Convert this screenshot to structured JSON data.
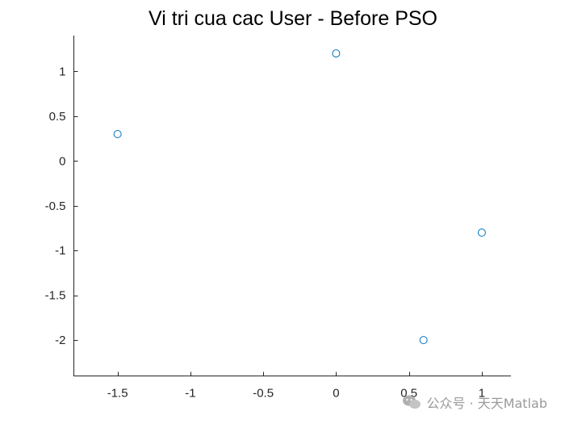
{
  "chart_data": {
    "type": "scatter",
    "title": "Vi tri cua cac User - Before PSO",
    "xlabel": "",
    "ylabel": "",
    "xlim": [
      -1.8,
      1.2
    ],
    "ylim": [
      -2.4,
      1.4
    ],
    "xticks": [
      -1.5,
      -1,
      -0.5,
      0,
      0.5,
      1
    ],
    "xtick_labels": [
      "-1.5",
      "-1",
      "-0.5",
      "0",
      "0.5",
      "1"
    ],
    "yticks": [
      1,
      0.5,
      0,
      -0.5,
      -1,
      -1.5,
      -2
    ],
    "ytick_labels": [
      "1",
      "0.5",
      "0",
      "-0.5",
      "-1",
      "-1.5",
      "-2"
    ],
    "grid": false,
    "marker": "circle",
    "marker_color": "#0072BD",
    "series": [
      {
        "x": [
          -1.5,
          0,
          1,
          0.6
        ],
        "y": [
          0.3,
          1.2,
          -0.8,
          -2
        ]
      }
    ]
  },
  "watermark": {
    "text": "公众号 · 天天Matlab",
    "icon": "wechat-icon",
    "color": "#9a9a9a"
  }
}
